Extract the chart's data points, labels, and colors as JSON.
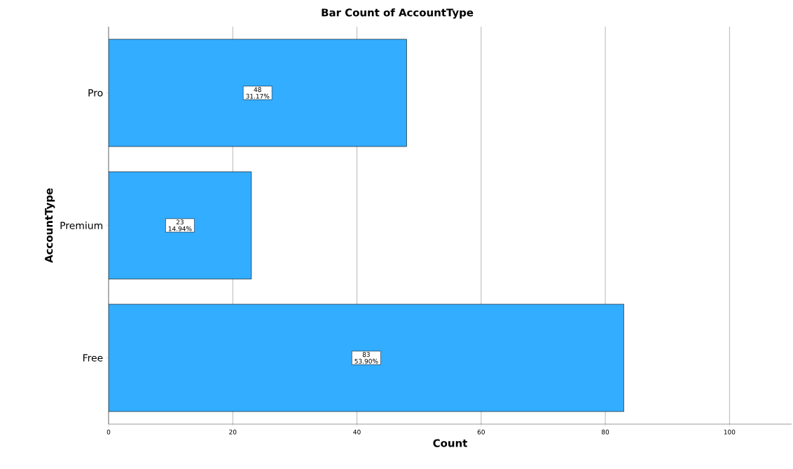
{
  "chart_data": {
    "type": "bar",
    "orientation": "horizontal",
    "title": "Bar Count of AccountType",
    "xlabel": "Count",
    "ylabel": "AccountType",
    "categories": [
      "Pro",
      "Premium",
      "Free"
    ],
    "values": [
      48,
      23,
      83
    ],
    "value_labels": [
      "48 31.17%",
      "23 14.94%",
      "83 53.90%"
    ],
    "color": "#33adff",
    "xlim": [
      0,
      110
    ],
    "xticks": [
      0,
      20,
      40,
      60,
      80,
      100
    ],
    "grid": "x"
  }
}
